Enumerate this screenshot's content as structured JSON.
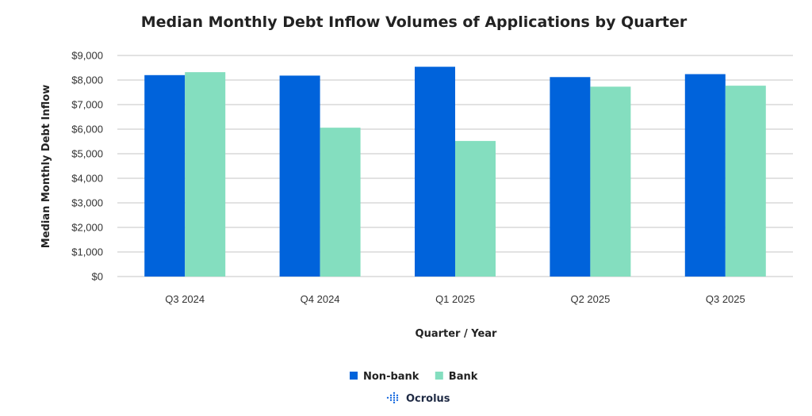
{
  "chart_data": {
    "type": "bar",
    "title": "Median Monthly Debt Inflow Volumes of Applications by Quarter",
    "xlabel": "Quarter / Year",
    "ylabel": "Median Monthly Debt Inflow",
    "categories": [
      "Q3 2024",
      "Q4 2024",
      "Q1 2025",
      "Q2 2025",
      "Q3 2025"
    ],
    "series": [
      {
        "name": "Non-bank",
        "color": "#0063DB",
        "values": [
          8200,
          8180,
          8540,
          8120,
          8240
        ]
      },
      {
        "name": "Bank",
        "color": "#84DEBF",
        "values": [
          8320,
          6060,
          5520,
          7730,
          7770
        ]
      }
    ],
    "ylim": [
      0,
      9000
    ],
    "yticks": [
      {
        "value": 0,
        "label": "$0"
      },
      {
        "value": 1000,
        "label": "$1,000"
      },
      {
        "value": 2000,
        "label": "$2,000"
      },
      {
        "value": 3000,
        "label": "$3,000"
      },
      {
        "value": 4000,
        "label": "$4,000"
      },
      {
        "value": 5000,
        "label": "$5,000"
      },
      {
        "value": 6000,
        "label": "$6,000"
      },
      {
        "value": 7000,
        "label": "$7,000"
      },
      {
        "value": 8000,
        "label": "$8,000"
      },
      {
        "value": 9000,
        "label": "$9,000"
      }
    ],
    "grid": true,
    "legend": "bottom-center",
    "gridColor": "#d9d9d9"
  },
  "brand": {
    "name": "Ocrolus",
    "icon": "ocrolus-logo-icon",
    "color": "#1f6fe0"
  }
}
